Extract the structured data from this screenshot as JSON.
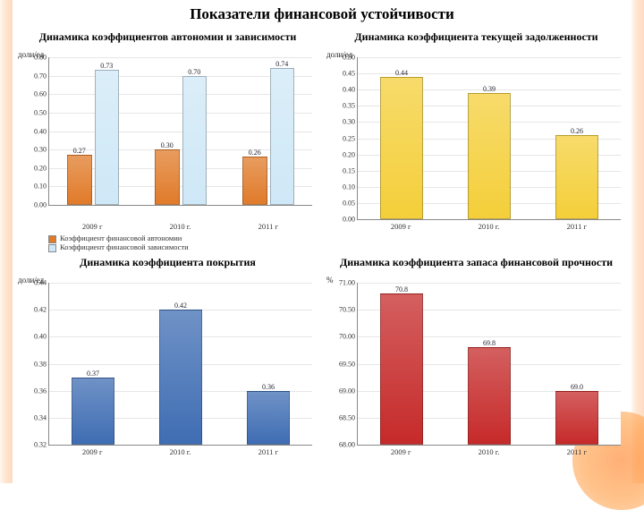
{
  "title": "Показатели финансовой устойчивости",
  "ylabel": "доли/ед",
  "ylabel_pct": "%",
  "categories": [
    "2009 г",
    "2010 г.",
    "2011 г"
  ],
  "chart1": {
    "title": "Динамика коэффициентов автономии и зависимости",
    "type": "grouped-bar",
    "ylim": [
      0.0,
      0.8
    ],
    "ytick_step": 0.1,
    "series": [
      {
        "name": "Коэффициент финансовой автономии",
        "color": "#e07b2a",
        "values": [
          0.27,
          0.3,
          0.26
        ]
      },
      {
        "name": "Коэффициент финансовой зависимости",
        "color": "#cfe8f7",
        "values": [
          0.73,
          0.7,
          0.74
        ]
      }
    ],
    "bar_width_pct": 28,
    "grid_color": "#e6e6e6"
  },
  "chart2": {
    "title": "Динамика коэффициента текущей задолженности",
    "type": "bar",
    "ylim": [
      0.0,
      0.5
    ],
    "ytick_step": 0.05,
    "color": "#f4cf3a",
    "values": [
      0.44,
      0.39,
      0.26
    ],
    "bar_width_pct": 48,
    "grid_color": "#e6e6e6"
  },
  "chart3": {
    "title": "Динамика коэффициента покрытия",
    "type": "bar",
    "ylim": [
      0.32,
      0.44
    ],
    "ytick_step": 0.02,
    "color": "#3f6db3",
    "values": [
      0.37,
      0.42,
      0.36
    ],
    "bar_width_pct": 48,
    "grid_color": "#e6e6e6"
  },
  "chart4": {
    "title": "Динамика коэффициента запаса финансовой прочности",
    "type": "bar",
    "ylim": [
      68.0,
      71.0
    ],
    "ytick_step": 0.5,
    "color": "#c62a2a",
    "values": [
      70.8,
      69.8,
      69.0
    ],
    "bar_width_pct": 48,
    "grid_color": "#e6e6e6",
    "decimals": 1
  }
}
